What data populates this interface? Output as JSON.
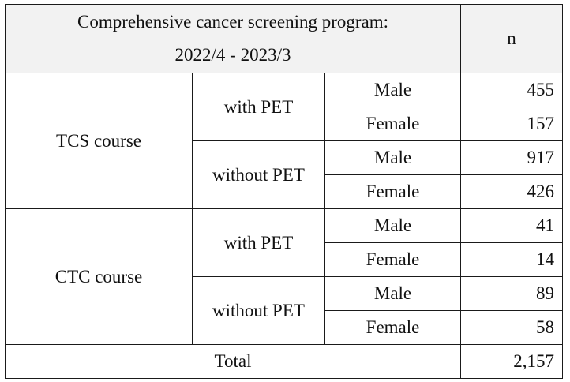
{
  "header": {
    "title_line1": "Comprehensive cancer screening program:",
    "title_line2": "2022/4 - 2023/3",
    "n_label": "n"
  },
  "courses": [
    {
      "name": "TCS course",
      "groups": [
        {
          "pet": "with PET",
          "rows": [
            {
              "sex": "Male",
              "n": "455"
            },
            {
              "sex": "Female",
              "n": "157"
            }
          ]
        },
        {
          "pet": "without PET",
          "rows": [
            {
              "sex": "Male",
              "n": "917"
            },
            {
              "sex": "Female",
              "n": "426"
            }
          ]
        }
      ]
    },
    {
      "name": "CTC course",
      "groups": [
        {
          "pet": "with PET",
          "rows": [
            {
              "sex": "Male",
              "n": "41"
            },
            {
              "sex": "Female",
              "n": "14"
            }
          ]
        },
        {
          "pet": "without PET",
          "rows": [
            {
              "sex": "Male",
              "n": "89"
            },
            {
              "sex": "Female",
              "n": "58"
            }
          ]
        }
      ]
    }
  ],
  "total": {
    "label": "Total",
    "n": "2,157"
  }
}
